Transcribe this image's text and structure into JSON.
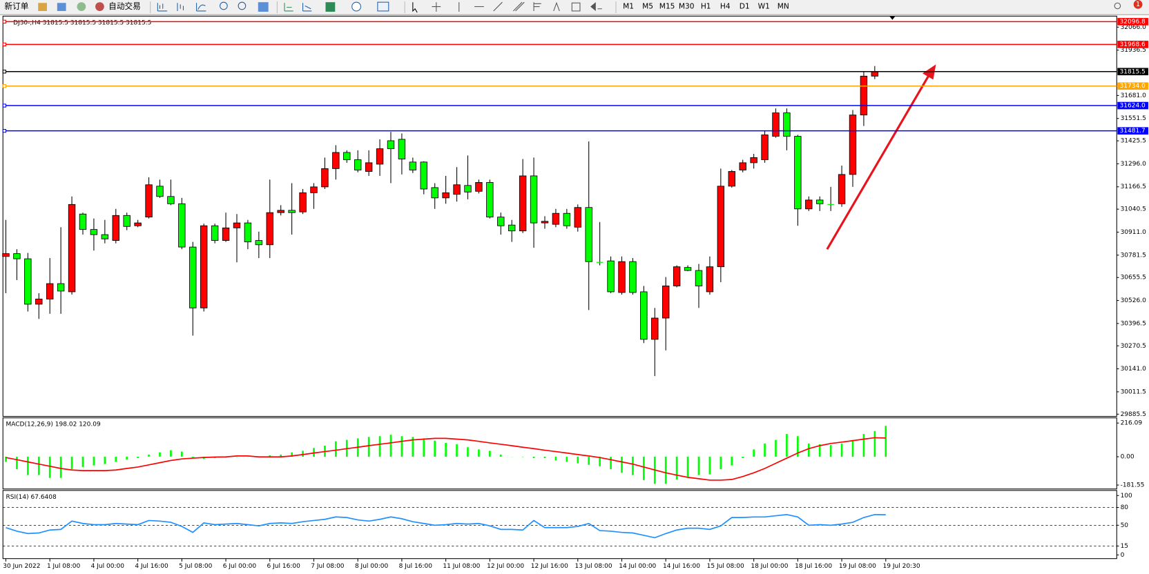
{
  "toolbar": {
    "buttons": [
      "新订单",
      "自动交易"
    ],
    "timeframes": [
      "M1",
      "M5",
      "M15",
      "M30",
      "H1",
      "H4",
      "D1",
      "W1",
      "MN"
    ],
    "badge": "1"
  },
  "chart_data": [
    {
      "type": "candlestick",
      "title": "DJ30-,H4  31815.5 31815.5 31815.5 31815.5",
      "categories": [
        "30 Jun 2022",
        null,
        null,
        null,
        "1 Jul 08:00",
        null,
        null,
        null,
        "4 Jul 00:00",
        null,
        null,
        null,
        "4 Jul 16:00",
        null,
        null,
        null,
        "5 Jul 08:00",
        null,
        null,
        null,
        "6 Jul 00:00",
        null,
        null,
        null,
        "6 Jul 16:00",
        null,
        null,
        null,
        "7 Jul 08:00",
        null,
        null,
        null,
        "8 Jul 00:00",
        null,
        null,
        null,
        "8 Jul 16:00",
        null,
        null,
        null,
        "11 Jul 08:00",
        null,
        null,
        null,
        "12 Jul 00:00",
        null,
        null,
        null,
        "12 Jul 16:00",
        null,
        null,
        null,
        "13 Jul 08:00",
        null,
        null,
        null,
        "14 Jul 00:00",
        null,
        null,
        null,
        "14 Jul 16:00",
        null,
        null,
        null,
        "15 Jul 08:00",
        null,
        null,
        null,
        "18 Jul 00:00",
        null,
        null,
        null,
        "18 Jul 16:00",
        null,
        null,
        null,
        "19 Jul 08:00",
        null,
        null,
        null,
        "19 Jul 20:30"
      ],
      "open": [
        30774,
        30790,
        30761,
        30505,
        30534,
        30621,
        30575,
        31013,
        30926,
        30897,
        30864,
        31005,
        30947,
        30996,
        31170,
        31112,
        31071,
        30827,
        30484,
        30947,
        30864,
        30935,
        30963,
        30864,
        30840,
        31021,
        31034,
        31025,
        31133,
        31166,
        31269,
        31360,
        31319,
        31253,
        31294,
        31426,
        31434,
        31306,
        31306,
        31162,
        31104,
        31124,
        31174,
        31141,
        31191,
        30996,
        30951,
        30918,
        31228,
        30963,
        30955,
        31017,
        30939,
        31050,
        30745,
        30749,
        30571,
        30745,
        30575,
        30307,
        30427,
        30608,
        30712,
        30695,
        30575,
        30716,
        31170,
        31261,
        31302,
        31319,
        31451,
        31583,
        31451,
        31042,
        31092,
        31071,
        31071,
        31236,
        31571,
        31790,
        31815.5
      ],
      "high": [
        30980,
        30815,
        30794,
        30567,
        30765,
        30939,
        31112,
        31021,
        30988,
        30980,
        31042,
        31021,
        30980,
        31220,
        31207,
        31207,
        31104,
        30856,
        30959,
        30959,
        31021,
        31013,
        30980,
        30914,
        31207,
        31063,
        31187,
        31154,
        31187,
        31331,
        31401,
        31372,
        31372,
        31372,
        31434,
        31476,
        31467,
        31331,
        31310,
        31187,
        31228,
        31277,
        31343,
        31207,
        31207,
        31021,
        30980,
        31323,
        31331,
        31001,
        31042,
        31042,
        31067,
        31422,
        30968,
        30774,
        30774,
        30765,
        30608,
        30484,
        30658,
        30724,
        30724,
        30732,
        30774,
        31269,
        31261,
        31319,
        31352,
        31484,
        31608,
        31608,
        31459,
        31112,
        31112,
        31166,
        31286,
        31599,
        31814,
        31847,
        31815.5
      ],
      "low": [
        30567,
        30641,
        30464,
        30422,
        30451,
        30451,
        30559,
        30897,
        30807,
        30848,
        30848,
        30922,
        30939,
        30988,
        31104,
        31063,
        30815,
        30328,
        30464,
        30848,
        30856,
        30741,
        30815,
        30765,
        30765,
        31005,
        30897,
        31013,
        31042,
        31154,
        31207,
        31302,
        31248,
        31228,
        31228,
        31187,
        31236,
        31244,
        31124,
        31042,
        31071,
        31083,
        31096,
        31129,
        30988,
        30897,
        30856,
        30906,
        30823,
        30930,
        30939,
        30930,
        30914,
        30472,
        30724,
        30567,
        30559,
        30559,
        30286,
        30100,
        30245,
        30600,
        30691,
        30484,
        30559,
        30629,
        31162,
        31248,
        31269,
        31302,
        31443,
        31372,
        30947,
        31030,
        31030,
        31030,
        31054,
        31166,
        31509,
        31773,
        31815.5
      ],
      "close": [
        30790,
        30761,
        30505,
        30534,
        30621,
        30579,
        31067,
        30926,
        30897,
        30873,
        31005,
        30943,
        30963,
        31178,
        31112,
        31071,
        30827,
        30484,
        30947,
        30864,
        30935,
        30963,
        30856,
        30840,
        31021,
        31034,
        31021,
        31133,
        31166,
        31269,
        31360,
        31319,
        31261,
        31302,
        31381,
        31381,
        31323,
        31261,
        31154,
        31104,
        31133,
        31178,
        31137,
        31191,
        30996,
        30947,
        30918,
        31228,
        30963,
        30972,
        31017,
        30947,
        31050,
        30745,
        30741,
        30575,
        30745,
        30571,
        30307,
        30427,
        30608,
        30716,
        30695,
        30608,
        30716,
        31170,
        31253,
        31302,
        31331,
        31459,
        31583,
        31451,
        31042,
        31092,
        31071,
        31067,
        31236,
        31571,
        31790,
        31815.5,
        31815.5
      ],
      "up_color": "#ff0000",
      "down_color": "#00ff00",
      "ylim": [
        29873,
        32128
      ],
      "yticks": [
        {
          "value": 32066,
          "label": "32066.0"
        },
        31936.5,
        {
          "value": 31681,
          "label": "31681.0"
        },
        31551.5,
        31425.5,
        {
          "value": 31296,
          "label": "31296.0"
        },
        31166.5,
        31040.5,
        {
          "value": 30911,
          "label": "30911.0"
        },
        30781.5,
        30655.5,
        {
          "value": 30526,
          "label": "30526.0"
        },
        30396.5,
        30270.5,
        {
          "value": 30141,
          "label": "30141.0"
        },
        30011.5,
        29885.5
      ],
      "hlines": [
        {
          "value": 32096.8,
          "label": "32096.8",
          "color": "#ff0000"
        },
        {
          "value": 31968.6,
          "label": "31968.6",
          "color": "#ff0000"
        },
        {
          "value": 31815.5,
          "label": "31815.5",
          "color": "#000000"
        },
        {
          "value": 31734,
          "label": "31734.0",
          "color": "#ffa500"
        },
        {
          "value": 31624,
          "label": "31624.0",
          "color": "#0000ff"
        },
        {
          "value": 31481.7,
          "label": "31481.7",
          "color": "#0000ff"
        }
      ]
    },
    {
      "type": "macd",
      "title": "MACD(12,26,9) 198.02 120.09",
      "histogram": {
        "color": "#00ff00",
        "values": [
          -33,
          -80,
          -118,
          -118,
          -136,
          -136,
          -80,
          -66,
          -56,
          -47,
          -33,
          -19,
          -9,
          14,
          28,
          42,
          33,
          -5,
          -14,
          -9,
          -5,
          -2,
          -1,
          1,
          9,
          14,
          28,
          38,
          56,
          71,
          99,
          108,
          118,
          127,
          132,
          141,
          132,
          127,
          118,
          103,
          89,
          80,
          61,
          47,
          38,
          14,
          -1,
          -2,
          -9,
          -9,
          -24,
          -33,
          -42,
          -52,
          -61,
          -80,
          -103,
          -118,
          -150,
          -174,
          -174,
          -146,
          -127,
          -118,
          -113,
          -80,
          -56,
          -9,
          47,
          85,
          108,
          146,
          132,
          85,
          80,
          75,
          85,
          108,
          146,
          165,
          198.02
        ]
      },
      "signal": {
        "color": "#ff0000",
        "values": [
          -5,
          -19,
          -33,
          -47,
          -61,
          -75,
          -85,
          -89,
          -89,
          -89,
          -85,
          -75,
          -66,
          -52,
          -38,
          -24,
          -14,
          -9,
          -5,
          -2,
          -1,
          5,
          5,
          -1,
          -1,
          -1,
          5,
          14,
          24,
          33,
          42,
          52,
          61,
          71,
          80,
          89,
          99,
          108,
          113,
          118,
          118,
          113,
          108,
          99,
          89,
          80,
          71,
          61,
          52,
          42,
          33,
          24,
          14,
          5,
          -5,
          -19,
          -33,
          -47,
          -66,
          -85,
          -103,
          -118,
          -132,
          -141,
          -150,
          -150,
          -146,
          -127,
          -103,
          -75,
          -42,
          -9,
          24,
          52,
          71,
          85,
          94,
          103,
          113,
          122,
          120.09
        ]
      },
      "ylim": [
        -202,
        240
      ],
      "yticks": [
        216.09,
        {
          "value": 0,
          "label": "0.00"
        },
        -181.55
      ]
    },
    {
      "type": "rsi",
      "title": "RSI(14) 67.6408",
      "color": "#1e90ff",
      "values": [
        46,
        40,
        36,
        37,
        42,
        43,
        57,
        53,
        51,
        51,
        53,
        52,
        51,
        58,
        57,
        55,
        48,
        38,
        54,
        51,
        52,
        53,
        51,
        49,
        53,
        54,
        53,
        56,
        58,
        60,
        64,
        63,
        59,
        57,
        60,
        64,
        61,
        56,
        53,
        50,
        51,
        53,
        52,
        53,
        49,
        43,
        43,
        42,
        58,
        46,
        46,
        46,
        48,
        53,
        41,
        40,
        38,
        37,
        33,
        29,
        36,
        42,
        45,
        45,
        43,
        49,
        63,
        63,
        64,
        64,
        66,
        68,
        64,
        50,
        51,
        50,
        52,
        55,
        63,
        68,
        67.6408
      ],
      "ylim": [
        0,
        100
      ],
      "yticks": [
        100,
        80,
        50,
        15,
        0
      ]
    }
  ]
}
